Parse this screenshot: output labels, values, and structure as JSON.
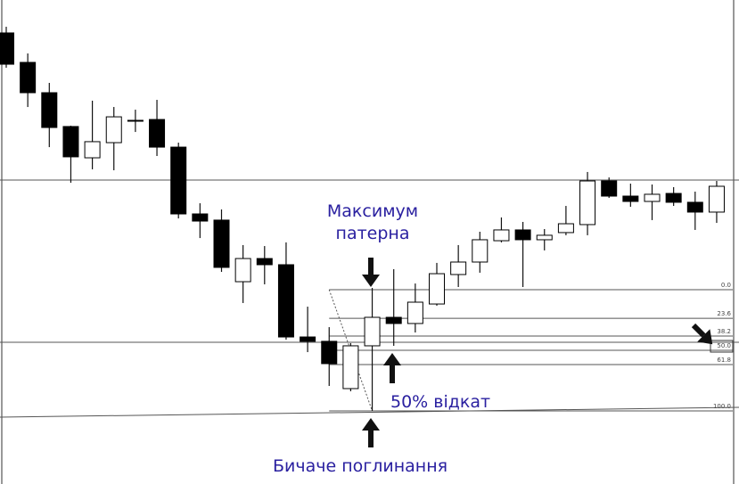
{
  "chart_data": {
    "type": "candlestick",
    "title": "",
    "xlabel": "",
    "ylabel": "",
    "grid": false,
    "colors": {
      "bearish": "#000000",
      "bullish": "#ffffff",
      "outline": "#000000",
      "lines": "#555555",
      "annotation": "#2a20a0"
    },
    "candles": [
      {
        "o": 311.8,
        "h": 316.9,
        "l": 283.1,
        "c": 286.0
      },
      {
        "o": 287.5,
        "h": 294.9,
        "l": 250.7,
        "c": 262.5
      },
      {
        "o": 262.5,
        "h": 270.6,
        "l": 217.6,
        "c": 233.8
      },
      {
        "o": 234.6,
        "h": 235.3,
        "l": 188.2,
        "c": 209.6
      },
      {
        "o": 208.8,
        "h": 255.9,
        "l": 199.3,
        "c": 222.1
      },
      {
        "o": 221.3,
        "h": 250.7,
        "l": 198.5,
        "c": 242.6
      },
      {
        "o": 239.7,
        "h": 248.5,
        "l": 230.1,
        "c": 239.7
      },
      {
        "o": 240.4,
        "h": 256.6,
        "l": 210.3,
        "c": 217.6
      },
      {
        "o": 217.6,
        "h": 221.3,
        "l": 158.8,
        "c": 162.5
      },
      {
        "o": 162.5,
        "h": 171.3,
        "l": 142.6,
        "c": 156.6
      },
      {
        "o": 157.4,
        "h": 166.2,
        "l": 114.7,
        "c": 118.4
      },
      {
        "o": 106.6,
        "h": 136.8,
        "l": 89.0,
        "c": 125.7
      },
      {
        "o": 125.7,
        "h": 136.0,
        "l": 104.4,
        "c": 120.6
      },
      {
        "o": 120.6,
        "h": 139.0,
        "l": 58.8,
        "c": 61.0
      },
      {
        "o": 61.0,
        "h": 86.0,
        "l": 48.5,
        "c": 57.4
      },
      {
        "o": 57.4,
        "h": 69.1,
        "l": 20.6,
        "c": 39.0
      },
      {
        "o": 18.4,
        "h": 55.9,
        "l": 16.2,
        "c": 53.7
      },
      {
        "o": 53.7,
        "h": 101.5,
        "l": 0.0,
        "c": 77.2
      },
      {
        "o": 77.2,
        "h": 116.9,
        "l": 53.7,
        "c": 72.1
      },
      {
        "o": 72.1,
        "h": 105.1,
        "l": 64.7,
        "c": 89.7
      },
      {
        "o": 88.2,
        "h": 122.1,
        "l": 86.8,
        "c": 113.2
      },
      {
        "o": 112.5,
        "h": 136.8,
        "l": 102.2,
        "c": 122.8
      },
      {
        "o": 122.8,
        "h": 147.8,
        "l": 114.0,
        "c": 141.2
      },
      {
        "o": 140.4,
        "h": 159.6,
        "l": 139.0,
        "c": 149.3
      },
      {
        "o": 149.3,
        "h": 155.9,
        "l": 102.2,
        "c": 141.2
      },
      {
        "o": 141.2,
        "h": 150.0,
        "l": 132.4,
        "c": 144.9
      },
      {
        "o": 147.1,
        "h": 169.1,
        "l": 144.9,
        "c": 154.4
      },
      {
        "o": 153.7,
        "h": 197.1,
        "l": 144.9,
        "c": 189.7
      },
      {
        "o": 189.7,
        "h": 192.6,
        "l": 175.7,
        "c": 177.2
      },
      {
        "o": 177.2,
        "h": 187.5,
        "l": 168.4,
        "c": 172.8
      },
      {
        "o": 172.8,
        "h": 186.8,
        "l": 157.4,
        "c": 178.7
      },
      {
        "o": 179.4,
        "h": 184.6,
        "l": 169.1,
        "c": 172.1
      },
      {
        "o": 172.1,
        "h": 180.9,
        "l": 149.3,
        "c": 164.0
      },
      {
        "o": 164.0,
        "h": 189.7,
        "l": 155.1,
        "c": 185.3
      }
    ],
    "horizontal_levels": [
      190.4,
      56.6
    ],
    "fibonacci": {
      "high": 100,
      "low": 0,
      "start_candle": 15,
      "levels": [
        {
          "ratio": 0.0,
          "label": "0.0"
        },
        {
          "ratio": 0.236,
          "label": "23.6"
        },
        {
          "ratio": 0.382,
          "label": "38.2"
        },
        {
          "ratio": 0.5,
          "label": "50.0",
          "highlighted": true
        },
        {
          "ratio": 0.618,
          "label": "61.8"
        },
        {
          "ratio": 1.0,
          "label": "100.0"
        }
      ]
    },
    "annotations": {
      "pattern_high_line1": "Максимум",
      "pattern_high_line2": "патерна",
      "retracement": "50% відкат",
      "bullish_engulfing": "Бичаче поглинання"
    }
  }
}
